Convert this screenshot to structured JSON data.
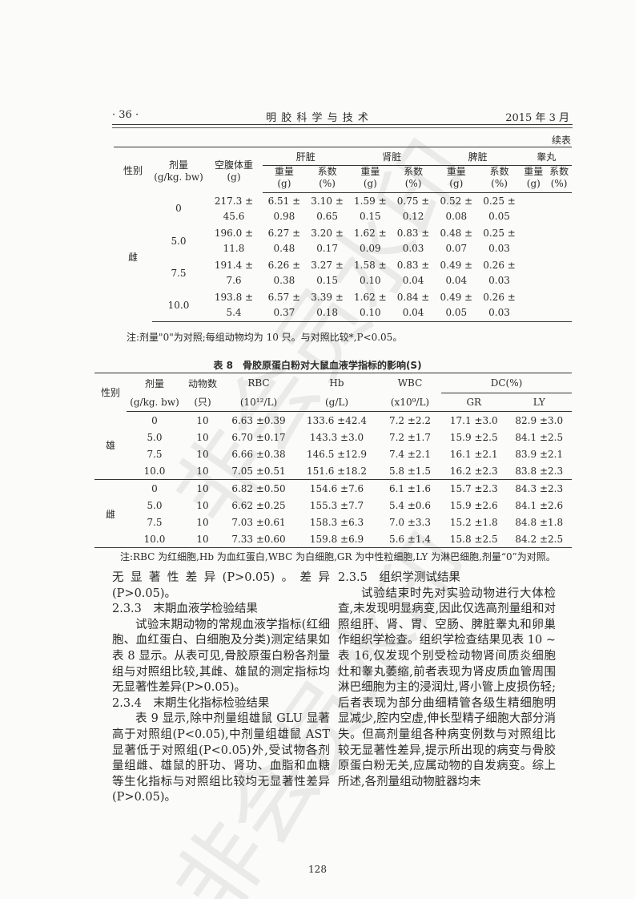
{
  "header": {
    "page_label": "· 36 ·",
    "journal": "明 胶 科 学 与 技 术",
    "date": "2015 年 3 月"
  },
  "watermark": "非会员水印",
  "table1": {
    "continued": "续表",
    "col_sex": "性别",
    "col_dose": "剂量",
    "col_dose_unit": "(g/kg. bw)",
    "col_weight": "空腹体重",
    "col_weight_unit": "(g)",
    "organs": [
      "肝脏",
      "肾脏",
      "脾脏",
      "睾丸"
    ],
    "sub_weight": "重量",
    "sub_weight_unit": "(g)",
    "sub_coef": "系数",
    "sub_coef_unit": "(%)",
    "sex": "雌",
    "rows": [
      {
        "dose": "0",
        "cells": [
          [
            "217.3 ±",
            "45.6"
          ],
          [
            "6.51 ±",
            "0.98"
          ],
          [
            "3.10 ±",
            "0.65"
          ],
          [
            "1.59 ±",
            "0.15"
          ],
          [
            "0.75 ±",
            "0.12"
          ],
          [
            "0.52 ±",
            "0.08"
          ],
          [
            "0.25 ±",
            "0.05"
          ]
        ]
      },
      {
        "dose": "5.0",
        "cells": [
          [
            "196.0 ±",
            "11.8"
          ],
          [
            "6.27 ±",
            "0.48"
          ],
          [
            "3.20 ±",
            "0.17"
          ],
          [
            "1.62 ±",
            "0.09"
          ],
          [
            "0.83 ±",
            "0.03"
          ],
          [
            "0.48 ±",
            "0.07"
          ],
          [
            "0.25 ±",
            "0.03"
          ]
        ]
      },
      {
        "dose": "7.5",
        "cells": [
          [
            "191.4 ±",
            "7.6"
          ],
          [
            "6.26 ±",
            "0.38"
          ],
          [
            "3.27 ±",
            "0.15"
          ],
          [
            "1.58 ±",
            "0.10"
          ],
          [
            "0.83 ±",
            "0.04"
          ],
          [
            "0.49 ±",
            "0.04"
          ],
          [
            "0.26 ±",
            "0.03"
          ]
        ]
      },
      {
        "dose": "10.0",
        "cells": [
          [
            "193.8 ±",
            "5.4"
          ],
          [
            "6.57 ±",
            "0.37"
          ],
          [
            "3.39 ±",
            "0.18"
          ],
          [
            "1.62 ±",
            "0.10"
          ],
          [
            "0.84 ±",
            "0.04"
          ],
          [
            "0.49 ±",
            "0.05"
          ],
          [
            "0.26 ±",
            "0.03"
          ]
        ]
      }
    ],
    "note": "注:剂量\"0\"为对照;每组动物均为 10 只。与对照比较*,P<0.05。"
  },
  "table8": {
    "caption": "表 8　骨胶原蛋白粉对大鼠血液学指标的影响(S)",
    "headers": {
      "sex": "性别",
      "dose": "剂量",
      "dose_unit": "(g/kg. bw)",
      "n": "动物数",
      "n_unit": "(只)",
      "rbc": "RBC",
      "rbc_unit": "(10¹²/L)",
      "hb": "Hb",
      "hb_unit": "(g/L)",
      "wbc": "WBC",
      "wbc_unit": "(x10⁹/L)",
      "dc": "DC(%)",
      "gr": "GR",
      "ly": "LY"
    },
    "groups": [
      {
        "sex": "雄",
        "rows": [
          [
            "0",
            "10",
            "6.63 ±0.39",
            "133.6 ±42.4",
            "7.2 ±2.2",
            "17.1 ±3.0",
            "82.9 ±3.0"
          ],
          [
            "5.0",
            "10",
            "6.70 ±0.17",
            "143.3 ±3.0",
            "7.2 ±1.7",
            "15.9 ±2.5",
            "84.1 ±2.5"
          ],
          [
            "7.5",
            "10",
            "6.66 ±0.38",
            "146.5 ±12.9",
            "7.4 ±2.1",
            "16.1 ±2.1",
            "83.9 ±2.1"
          ],
          [
            "10.0",
            "10",
            "7.05 ±0.51",
            "151.6 ±18.2",
            "5.8 ±1.5",
            "16.2 ±2.3",
            "83.8 ±2.3"
          ]
        ]
      },
      {
        "sex": "雌",
        "rows": [
          [
            "0",
            "10",
            "6.82 ±0.50",
            "154.6 ±7.6",
            "6.1 ±1.6",
            "15.7 ±2.3",
            "84.3 ±2.3"
          ],
          [
            "5.0",
            "10",
            "6.62 ±0.25",
            "155.3 ±7.7",
            "5.4 ±0.6",
            "15.9 ±2.6",
            "84.1 ±2.6"
          ],
          [
            "7.5",
            "10",
            "7.03 ±0.61",
            "158.3 ±6.3",
            "7.0 ±3.3",
            "15.2 ±1.8",
            "84.8 ±1.8"
          ],
          [
            "10.0",
            "10",
            "7.33 ±0.60",
            "159.8 ±6.9",
            "5.6 ±1.4",
            "15.8 ±2.5",
            "84.2 ±2.5"
          ]
        ]
      }
    ],
    "note": "注:RBC 为红细胞,Hb 为血红蛋白,WBC 为白细胞,GR 为中性粒细胞,LY 为淋巴细胞,剂量“0”为对照。"
  },
  "body": {
    "left": {
      "p0": "无显著性差异(P>0.05)。差异(P>0.05)。",
      "h1": "2.3.3　末期血液学检验结果",
      "p1": "试验末期动物的常规血液学指标(红细胞、血红蛋白、白细胞及分类)测定结果如表 8 显示。从表可见,骨胶原蛋白粉各剂量组与对照组比较,其雌、雄鼠的测定指标均无显著性差异(P>0.05)。",
      "h2": "2.3.4　末期生化指标检验结果",
      "p2": "表 9 显示,除中剂量组雄鼠 GLU 显著高于对照组(P<0.05),中剂量组雄鼠 AST 显著低于对照组(P<0.05)外,受试物各剂量组雌、雄鼠的肝功、肾功、血脂和血糖等生化指标与对照组比较均无显著性差异(P>0.05)。"
    },
    "right": {
      "h1": "2.3.5　组织学测试结果",
      "p1": "试验结束时先对实验动物进行大体检查,未发现明显病变,因此仅选高剂量组和对照组肝、肾、胃、空肠、脾脏睾丸和卵巢作组织学检查。组织学检查结果见表 10 ~ 表 16,仅发现个别受检动物肾间质炎细胞灶和睾丸萎缩,前者表现为肾皮质血管周围淋巴细胞为主的浸润灶,肾小管上皮损伤轻;后者表现为部分曲细精管各级生精细胞明显减少,腔内空虚,伸长型精子细胞大部分消失。但高剂量组各种病变例数与对照组比较无显著性差异,提示所出现的病变与骨胶原蛋白粉无关,应属动物的自发病变。综上所述,各剂量组动物脏器均未"
    }
  },
  "footer": {
    "page_number": "128"
  }
}
